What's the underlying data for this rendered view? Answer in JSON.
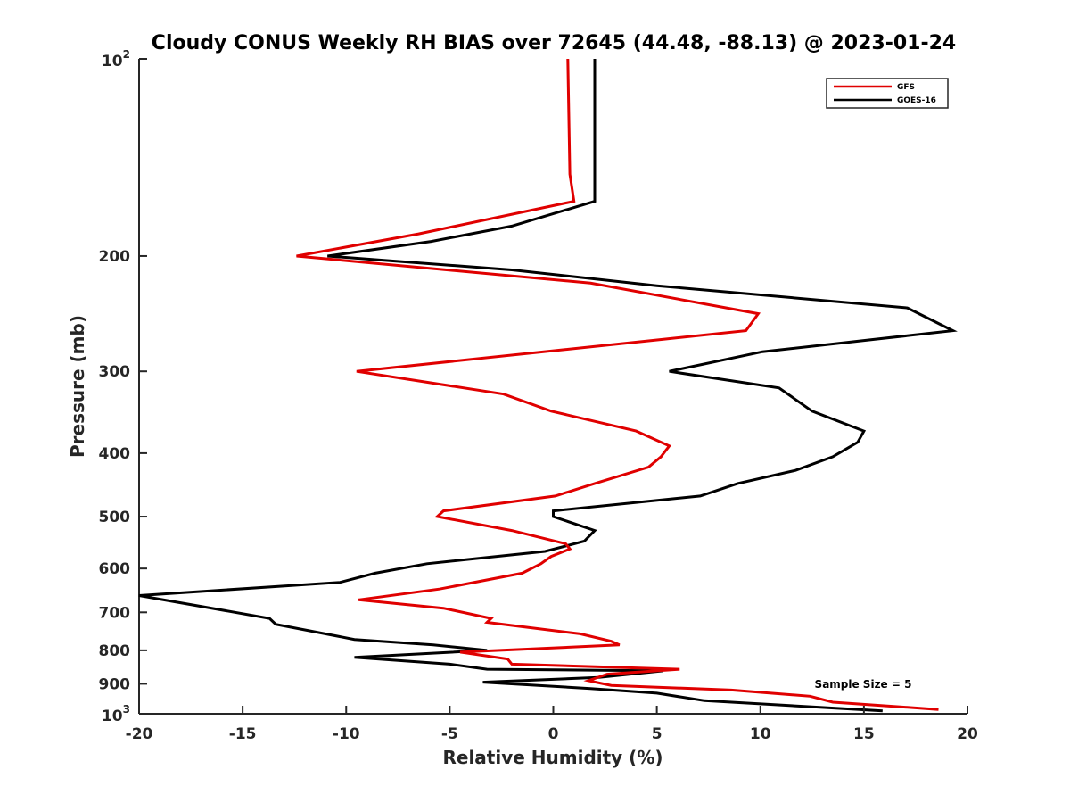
{
  "chart_data": {
    "type": "line",
    "title": "Cloudy CONUS Weekly RH BIAS over 72645 (44.48, -88.13) @ 2023-01-24",
    "xlabel": "Relative Humidity (%)",
    "ylabel": "Pressure (mb)",
    "xlim": [
      -20,
      20
    ],
    "ylim": [
      100,
      1000
    ],
    "yscale": "log",
    "y_reversed": true,
    "x_ticks": [
      -20,
      -15,
      -10,
      -5,
      0,
      5,
      10,
      15,
      20
    ],
    "x_tick_labels": [
      "-20",
      "-15",
      "-10",
      "-5",
      "0",
      "5",
      "10",
      "15",
      "20"
    ],
    "y_ticks": [
      200,
      300,
      400,
      500,
      600,
      700,
      800,
      900
    ],
    "y_tick_labels": [
      "200",
      "300",
      "400",
      "500",
      "600",
      "700",
      "800",
      "900"
    ],
    "y_top_label": {
      "base": "10",
      "exp": "2"
    },
    "y_bottom_label": {
      "base": "10",
      "exp": "3"
    },
    "grid": false,
    "legend_position": "top-right",
    "annotation": "Sample Size = 5",
    "series": [
      {
        "name": "GFS",
        "color": "#e00000",
        "points": [
          [
            0.7,
            100
          ],
          [
            0.8,
            150
          ],
          [
            1.0,
            165
          ],
          [
            -6.5,
            185
          ],
          [
            -12.4,
            200
          ],
          [
            1.8,
            220
          ],
          [
            9.9,
            245
          ],
          [
            9.3,
            260
          ],
          [
            -9.5,
            300
          ],
          [
            -2.4,
            325
          ],
          [
            -0.1,
            345
          ],
          [
            4.0,
            370
          ],
          [
            5.6,
            390
          ],
          [
            5.2,
            405
          ],
          [
            4.6,
            420
          ],
          [
            2.0,
            445
          ],
          [
            0.1,
            465
          ],
          [
            -5.3,
            490
          ],
          [
            -5.6,
            500
          ],
          [
            -2.0,
            525
          ],
          [
            0.6,
            550
          ],
          [
            0.8,
            560
          ],
          [
            -0.1,
            575
          ],
          [
            -0.6,
            590
          ],
          [
            -1.5,
            610
          ],
          [
            -5.5,
            645
          ],
          [
            -9.4,
            670
          ],
          [
            -5.3,
            690
          ],
          [
            -3.0,
            715
          ],
          [
            -3.2,
            725
          ],
          [
            1.3,
            755
          ],
          [
            2.8,
            775
          ],
          [
            3.2,
            785
          ],
          [
            -4.5,
            805
          ],
          [
            -2.2,
            825
          ],
          [
            -2.0,
            840
          ],
          [
            6.1,
            855
          ],
          [
            2.6,
            870
          ],
          [
            1.7,
            890
          ],
          [
            2.8,
            905
          ],
          [
            8.6,
            920
          ],
          [
            12.4,
            940
          ],
          [
            13.5,
            960
          ],
          [
            18.6,
            985
          ]
        ]
      },
      {
        "name": "GOES-16",
        "color": "#000000",
        "points": [
          [
            2.0,
            100
          ],
          [
            2.0,
            165
          ],
          [
            -2.0,
            180
          ],
          [
            -5.9,
            190
          ],
          [
            -10.9,
            200
          ],
          [
            -2.0,
            210
          ],
          [
            5.0,
            222
          ],
          [
            17.1,
            240
          ],
          [
            19.3,
            260
          ],
          [
            10.1,
            280
          ],
          [
            5.6,
            300
          ],
          [
            10.9,
            318
          ],
          [
            12.5,
            345
          ],
          [
            15.0,
            370
          ],
          [
            14.7,
            385
          ],
          [
            13.5,
            405
          ],
          [
            11.7,
            425
          ],
          [
            8.9,
            445
          ],
          [
            7.1,
            465
          ],
          [
            0.0,
            490
          ],
          [
            0.0,
            500
          ],
          [
            2.0,
            525
          ],
          [
            1.5,
            545
          ],
          [
            -0.4,
            565
          ],
          [
            -6.1,
            590
          ],
          [
            -8.6,
            610
          ],
          [
            -10.3,
            630
          ],
          [
            -20.0,
            660
          ],
          [
            -13.7,
            715
          ],
          [
            -13.4,
            730
          ],
          [
            -9.6,
            770
          ],
          [
            -5.8,
            785
          ],
          [
            -3.2,
            800
          ],
          [
            -9.6,
            820
          ],
          [
            -5.0,
            840
          ],
          [
            -3.2,
            855
          ],
          [
            5.3,
            860
          ],
          [
            2.2,
            880
          ],
          [
            -3.4,
            895
          ],
          [
            1.8,
            915
          ],
          [
            5.0,
            930
          ],
          [
            7.3,
            955
          ],
          [
            15.9,
            990
          ]
        ]
      }
    ]
  }
}
